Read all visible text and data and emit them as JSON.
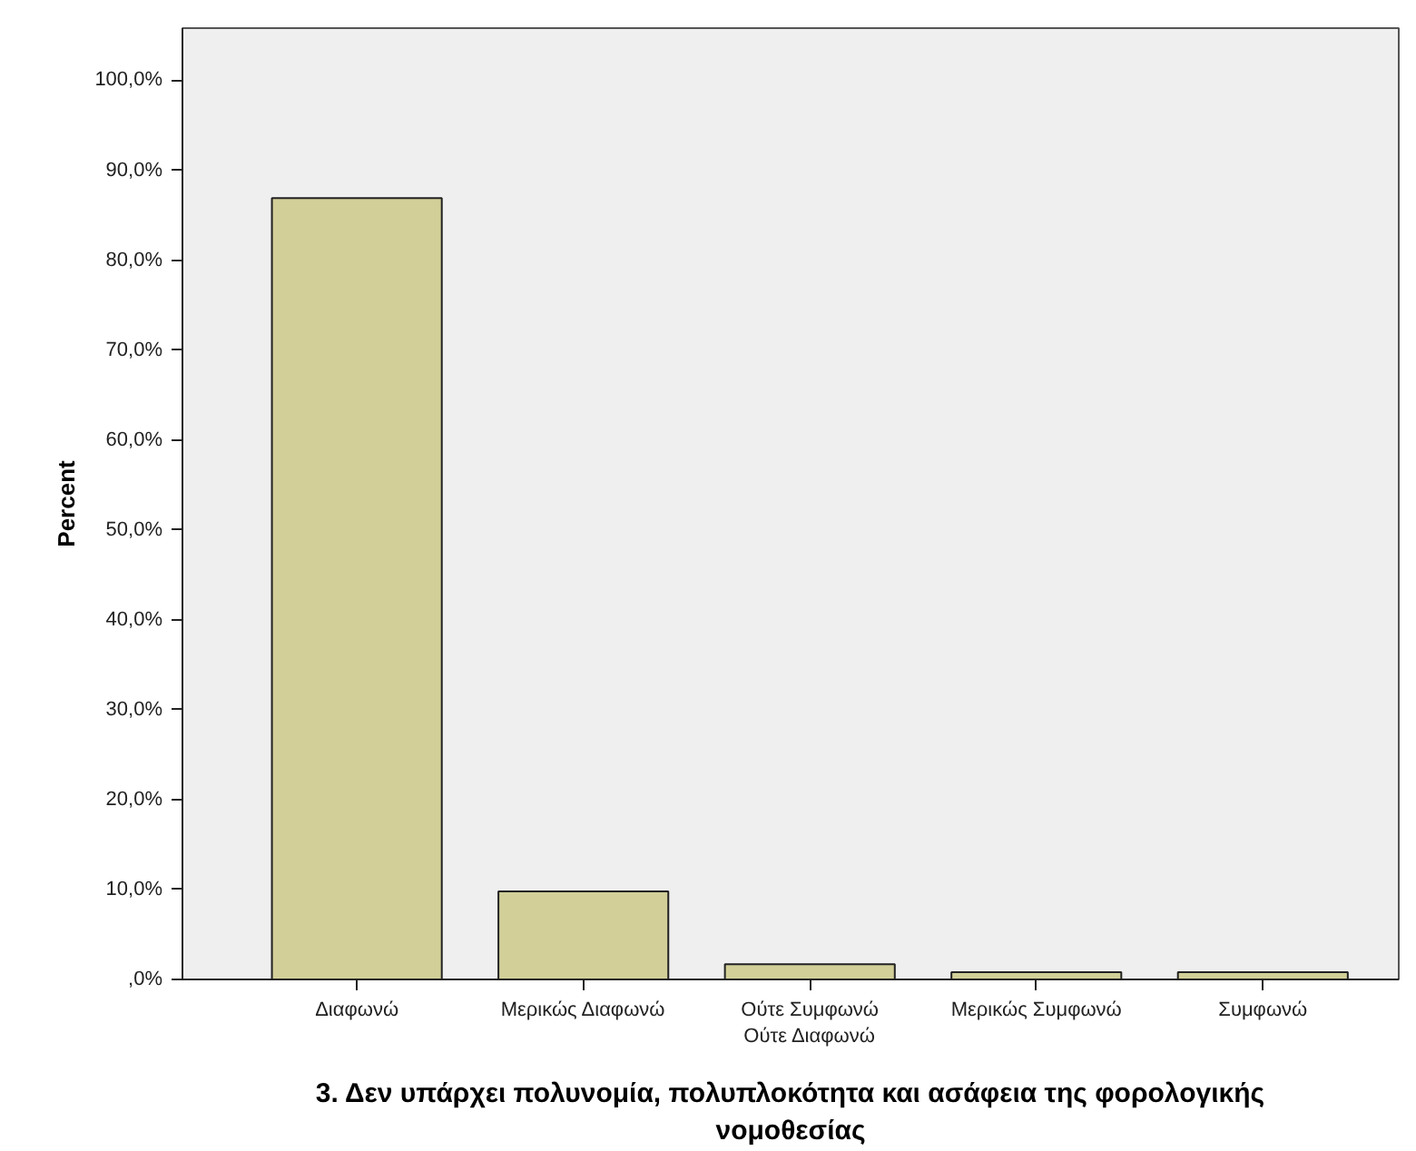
{
  "chart_data": {
    "type": "bar",
    "xlabel": "3. Δεν υπάρχει πολυνομία, πολυπλοκότητα και ασάφεια της φορολογικής νομοθεσίας",
    "ylabel": "Percent",
    "categories": [
      "Διαφωνώ",
      "Μερικώς Διαφωνώ",
      "Ούτε Συμφωνώ Ούτε Διαφωνώ",
      "Μερικώς Συμφωνώ",
      "Συμφωνώ"
    ],
    "values": [
      86.9,
      9.8,
      1.7,
      0.8,
      0.8
    ],
    "color": "#d2cf98",
    "ylim": [
      0,
      105.8
    ],
    "yticks": [
      {
        "value": 0,
        "label": ",0%"
      },
      {
        "value": 10,
        "label": "10,0%"
      },
      {
        "value": 20,
        "label": "20,0%"
      },
      {
        "value": 30,
        "label": "30,0%"
      },
      {
        "value": 40,
        "label": "40,0%"
      },
      {
        "value": 50,
        "label": "50,0%"
      },
      {
        "value": 60,
        "label": "60,0%"
      },
      {
        "value": 70,
        "label": "70,0%"
      },
      {
        "value": 80,
        "label": "80,0%"
      },
      {
        "value": 90,
        "label": "90,0%"
      },
      {
        "value": 100,
        "label": "100,0%"
      }
    ],
    "grid": false
  }
}
